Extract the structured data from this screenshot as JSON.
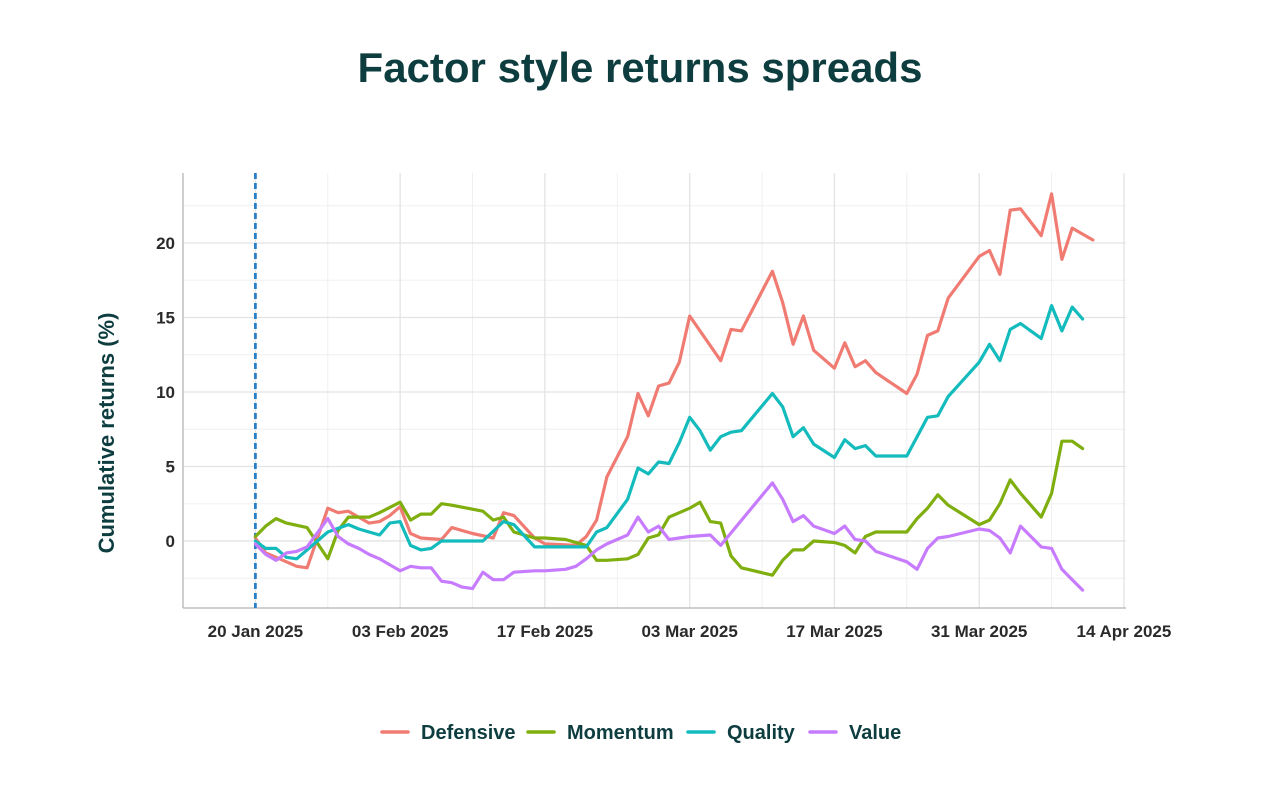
{
  "chart_data": {
    "type": "line",
    "title": "Factor style returns spreads",
    "xlabel": "",
    "ylabel": "Cumulative returns (%)",
    "x_tick_labels": [
      "20 Jan 2025",
      "03 Feb 2025",
      "17 Feb 2025",
      "03 Mar 2025",
      "17 Mar 2025",
      "31 Mar 2025",
      "14 Apr 2025"
    ],
    "x_tick_values": [
      2,
      16,
      30,
      44,
      58,
      72,
      86
    ],
    "y_ticks": [
      0,
      5,
      10,
      15,
      20
    ],
    "xlim": [
      -5,
      86.2
    ],
    "ylim": [
      -4.5,
      24.7
    ],
    "reference_line": {
      "x": 2,
      "style": "dashed",
      "color": "#2a7fc9"
    },
    "grid": true,
    "legend_position": "bottom",
    "series": [
      {
        "name": "Defensive",
        "color": "#f07b72",
        "x": [
          2,
          3,
          4,
          6,
          7,
          9,
          10,
          11,
          13,
          14,
          15,
          16,
          17,
          18,
          20,
          21,
          23,
          25,
          26,
          27,
          29,
          30,
          33,
          34,
          35,
          36,
          38,
          39,
          40,
          41,
          42,
          43,
          44,
          47,
          48,
          49,
          52,
          53,
          54,
          55,
          56,
          58,
          59,
          60,
          61,
          62,
          65,
          66,
          67,
          68,
          69,
          72,
          73,
          74,
          75,
          76,
          78,
          79,
          80,
          81,
          83,
          84,
          85,
          86
        ],
        "y": [
          0.2,
          -0.8,
          -1.1,
          -1.7,
          -1.8,
          2.2,
          1.9,
          2.0,
          1.2,
          1.3,
          1.7,
          2.3,
          0.5,
          0.2,
          0.1,
          0.9,
          0.5,
          0.2,
          1.9,
          1.7,
          0.2,
          -0.2,
          -0.3,
          0.3,
          1.4,
          4.3,
          7.0,
          9.9,
          8.4,
          10.4,
          10.6,
          12.0,
          15.1,
          12.1,
          14.2,
          14.1,
          18.1,
          16.0,
          13.2,
          15.1,
          12.8,
          11.6,
          13.3,
          11.7,
          12.1,
          11.3,
          9.9,
          11.2,
          13.8,
          14.1,
          16.3,
          19.1,
          19.5,
          17.9,
          22.2,
          22.3,
          20.5,
          23.3,
          18.9,
          21.0,
          20.2,
          null,
          null,
          null
        ]
      },
      {
        "name": "Momentum",
        "color": "#7fae0f",
        "x": [
          2,
          3,
          4,
          5,
          7,
          9,
          10,
          11,
          13,
          14,
          16,
          17,
          18,
          19,
          20,
          21,
          24,
          25,
          26,
          27,
          29,
          30,
          32,
          33,
          34,
          35,
          36,
          38,
          39,
          40,
          41,
          42,
          43,
          44,
          45,
          46,
          47,
          48,
          49,
          52,
          53,
          54,
          55,
          56,
          58,
          59,
          60,
          61,
          62,
          65,
          66,
          67,
          68,
          69,
          72,
          73,
          74,
          75,
          76,
          78,
          79,
          80,
          81,
          82
        ],
        "y": [
          0.3,
          1.0,
          1.5,
          1.2,
          0.9,
          -1.2,
          0.7,
          1.6,
          1.6,
          1.9,
          2.6,
          1.4,
          1.8,
          1.8,
          2.5,
          2.4,
          2.0,
          1.4,
          1.6,
          0.6,
          0.2,
          0.2,
          0.1,
          -0.1,
          -0.3,
          -1.3,
          -1.3,
          -1.2,
          -0.9,
          0.2,
          0.4,
          1.6,
          1.9,
          2.2,
          2.6,
          1.3,
          1.2,
          -1.0,
          -1.8,
          -2.3,
          -1.3,
          -0.6,
          -0.6,
          0.0,
          -0.1,
          -0.3,
          -0.8,
          0.3,
          0.6,
          0.6,
          1.5,
          2.2,
          3.1,
          2.4,
          1.1,
          1.4,
          2.5,
          4.1,
          3.2,
          1.6,
          3.2,
          6.7,
          6.7,
          6.2
        ]
      },
      {
        "name": "Quality",
        "color": "#13bbbd",
        "x": [
          2,
          3,
          4,
          5,
          6,
          7,
          8,
          9,
          11,
          12,
          14,
          15,
          16,
          17,
          18,
          19,
          20,
          21,
          22,
          23,
          24,
          26,
          27,
          29,
          30,
          32,
          33,
          34,
          35,
          36,
          38,
          39,
          40,
          41,
          42,
          43,
          44,
          45,
          46,
          47,
          48,
          49,
          52,
          53,
          54,
          55,
          56,
          58,
          59,
          60,
          61,
          62,
          65,
          66,
          67,
          68,
          69,
          72,
          73,
          74,
          75,
          76,
          78,
          79,
          80,
          81,
          82
        ],
        "y": [
          0.0,
          -0.5,
          -0.5,
          -1.1,
          -1.2,
          -0.6,
          0.0,
          0.6,
          1.1,
          0.8,
          0.4,
          1.2,
          1.3,
          -0.3,
          -0.6,
          -0.5,
          0.0,
          0.0,
          0.0,
          0.0,
          0.0,
          1.3,
          1.1,
          -0.4,
          -0.4,
          -0.4,
          -0.4,
          -0.4,
          0.6,
          0.9,
          2.8,
          4.9,
          4.5,
          5.3,
          5.2,
          6.6,
          8.3,
          7.4,
          6.1,
          7.0,
          7.3,
          7.4,
          9.9,
          9.0,
          7.0,
          7.6,
          6.5,
          5.6,
          6.8,
          6.2,
          6.4,
          5.7,
          5.7,
          7.0,
          8.3,
          8.4,
          9.7,
          12.0,
          13.2,
          12.1,
          14.2,
          14.6,
          13.6,
          15.8,
          14.1,
          15.7,
          14.9
        ]
      },
      {
        "name": "Value",
        "color": "#c77cff",
        "x": [
          2,
          3,
          4,
          5,
          6,
          7,
          9,
          10,
          11,
          12,
          13,
          14,
          16,
          17,
          18,
          19,
          20,
          21,
          22,
          23,
          24,
          25,
          26,
          27,
          29,
          30,
          32,
          33,
          34,
          35,
          36,
          38,
          39,
          40,
          41,
          42,
          43,
          44,
          46,
          47,
          52,
          53,
          54,
          55,
          56,
          58,
          59,
          60,
          61,
          62,
          65,
          66,
          67,
          68,
          69,
          72,
          73,
          74,
          75,
          76,
          78,
          79,
          80,
          81,
          82
        ],
        "y": [
          -0.2,
          -0.9,
          -1.3,
          -0.8,
          -0.7,
          -0.4,
          1.5,
          0.3,
          -0.2,
          -0.5,
          -0.9,
          -1.2,
          -2.0,
          -1.7,
          -1.8,
          -1.8,
          -2.7,
          -2.8,
          -3.1,
          -3.2,
          -2.1,
          -2.6,
          -2.6,
          -2.1,
          -2.0,
          -2.0,
          -1.9,
          -1.7,
          -1.2,
          -0.6,
          -0.2,
          0.4,
          1.6,
          0.6,
          1.0,
          0.1,
          0.2,
          0.3,
          0.4,
          -0.3,
          3.9,
          2.8,
          1.3,
          1.7,
          1.0,
          0.5,
          1.0,
          0.1,
          0.0,
          -0.7,
          -1.4,
          -1.9,
          -0.5,
          0.2,
          0.3,
          0.8,
          0.7,
          0.2,
          -0.8,
          1.0,
          -0.4,
          -0.5,
          -1.9,
          -2.6,
          -3.3
        ]
      }
    ]
  }
}
